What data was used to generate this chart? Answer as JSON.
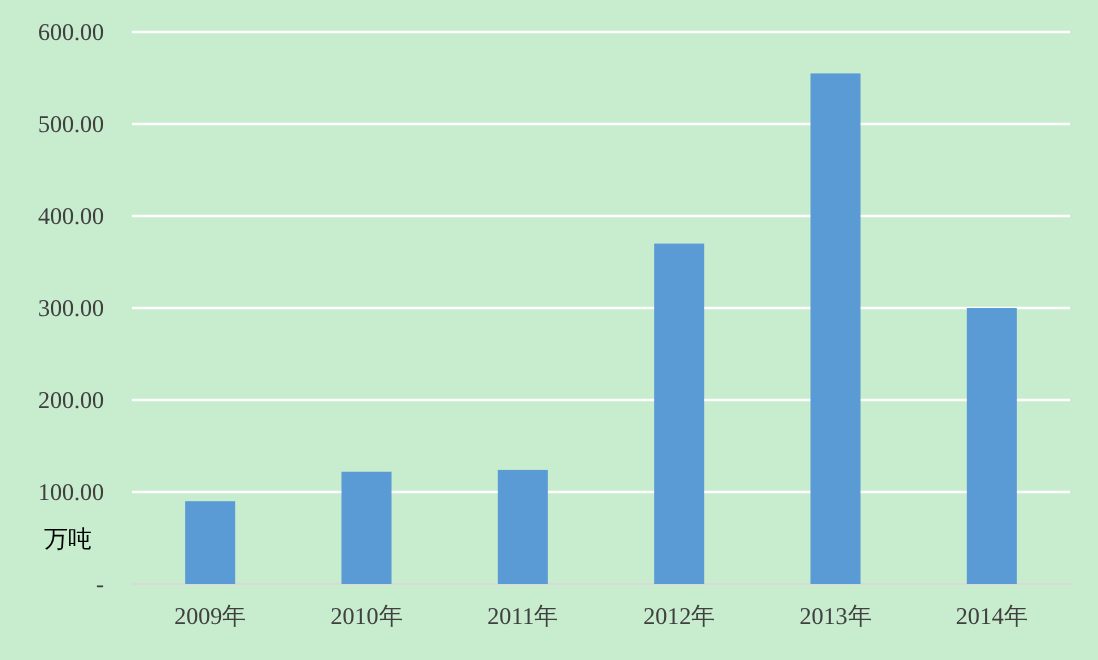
{
  "chart_data": {
    "type": "bar",
    "ylabel": "万吨",
    "categories": [
      "2009年",
      "2010年",
      "2011年",
      "2012年",
      "2013年",
      "2014年"
    ],
    "values": [
      90,
      122,
      124,
      370,
      555,
      300
    ],
    "color": "#5b9bd5",
    "ylim": [
      0,
      600
    ],
    "yticks": [
      {
        "value": 0,
        "label": "-"
      },
      {
        "value": 100,
        "label": "100.00"
      },
      {
        "value": 200,
        "label": "200.00"
      },
      {
        "value": 300,
        "label": "300.00"
      },
      {
        "value": 400,
        "label": "400.00"
      },
      {
        "value": 500,
        "label": "500.00"
      },
      {
        "value": 600,
        "label": "600.00"
      }
    ],
    "grid": "y"
  }
}
